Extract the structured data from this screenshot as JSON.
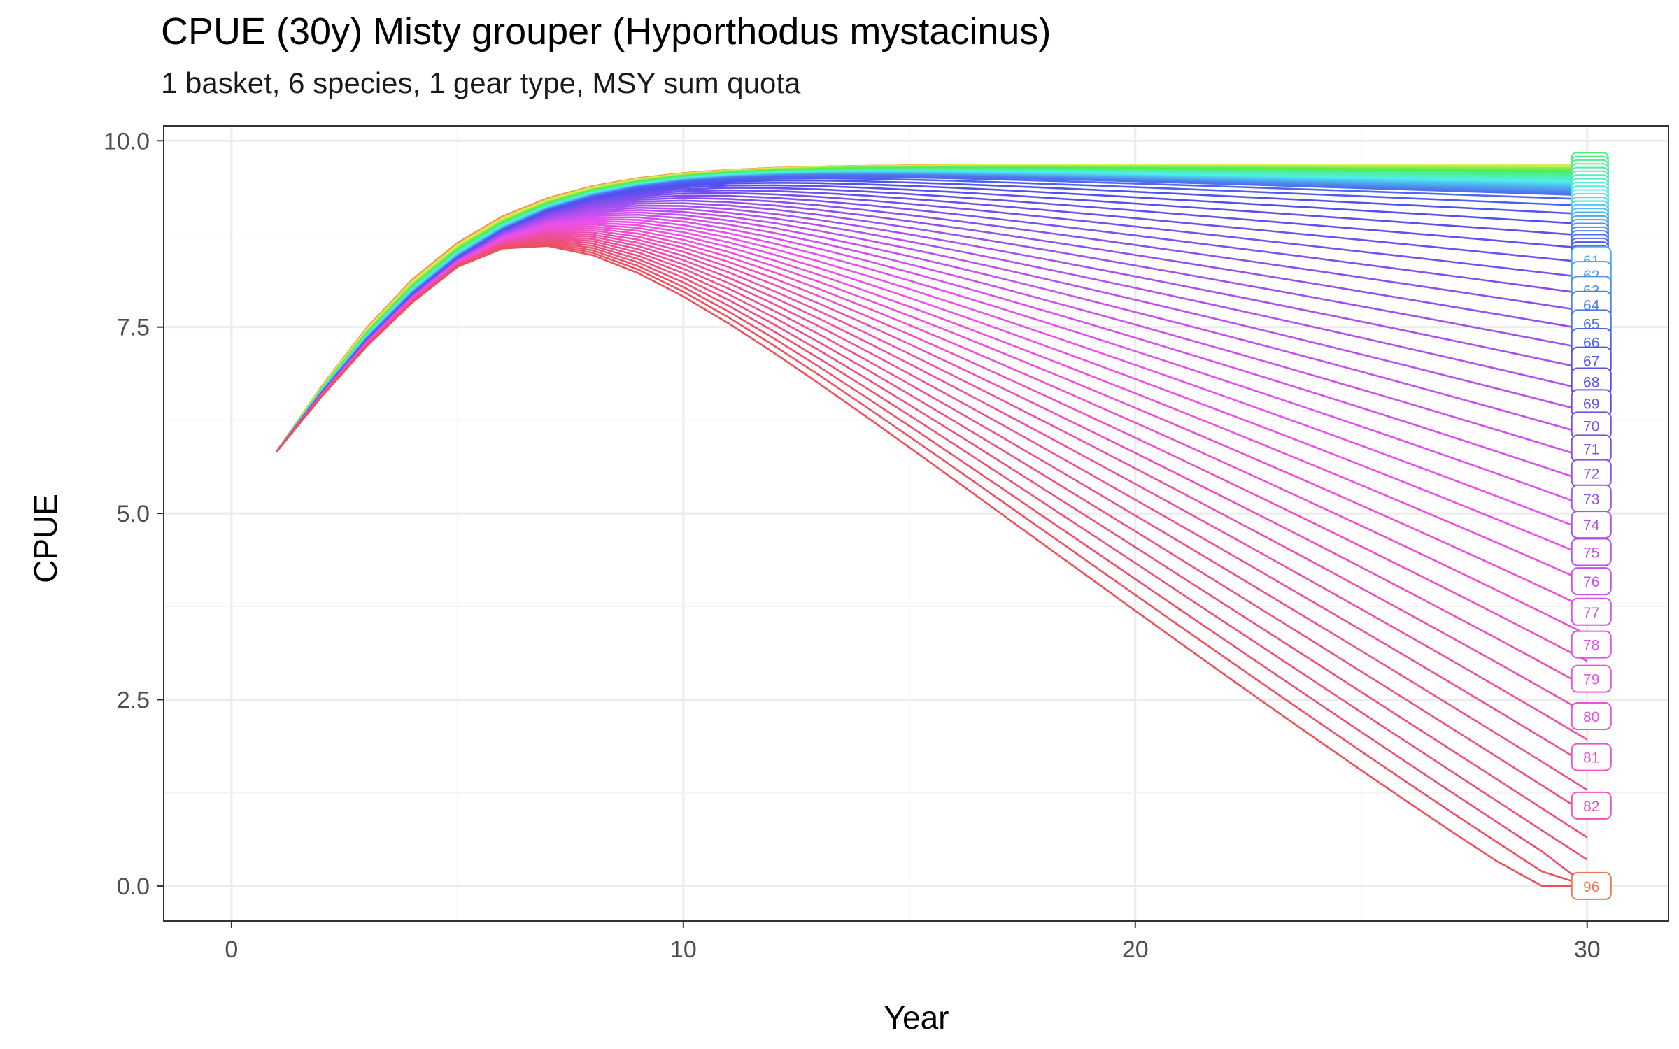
{
  "title": "CPUE (30y) Misty grouper (Hyporthodus mystacinus)",
  "subtitle": "1 basket, 6 species, 1 gear type, MSY sum quota",
  "chart_data": {
    "type": "line",
    "xlabel": "Year",
    "ylabel": "CPUE",
    "xlim": [
      -1.5,
      31.8
    ],
    "ylim": [
      -0.47,
      10.2
    ],
    "x_ticks": [
      0,
      10,
      20,
      30
    ],
    "y_ticks": [
      0.0,
      2.5,
      5.0,
      7.5,
      10.0
    ],
    "x_tick_labels": [
      "0",
      "10",
      "20",
      "30"
    ],
    "y_tick_labels": [
      "0.0",
      "2.5",
      "5.0",
      "7.5",
      "10.0"
    ],
    "grid": true,
    "series_count": 96,
    "series_index_range": [
      1,
      96
    ],
    "start_year": 1,
    "end_year": 30,
    "start_cpue": 5.83,
    "top_series_plateau_cpue": 9.68,
    "collapsed_series_min_year": 20,
    "visible_end_labels": [
      "61",
      "62",
      "63",
      "64",
      "65",
      "66",
      "67",
      "68",
      "69",
      "70",
      "71",
      "72",
      "73",
      "74",
      "75",
      "76",
      "77",
      "78",
      "79",
      "80",
      "81",
      "82",
      "96"
    ],
    "end_label_values": {
      "61": 8.4,
      "62": 8.2,
      "63": 8.0,
      "64": 7.8,
      "65": 7.55,
      "66": 7.3,
      "67": 7.05,
      "68": 6.77,
      "69": 6.48,
      "70": 6.18,
      "71": 5.87,
      "72": 5.54,
      "73": 5.2,
      "74": 4.85,
      "75": 4.48,
      "76": 4.09,
      "77": 3.68,
      "78": 3.24,
      "79": 2.78,
      "80": 2.28,
      "81": 1.73,
      "82": 1.08,
      "96": 0.0
    }
  }
}
